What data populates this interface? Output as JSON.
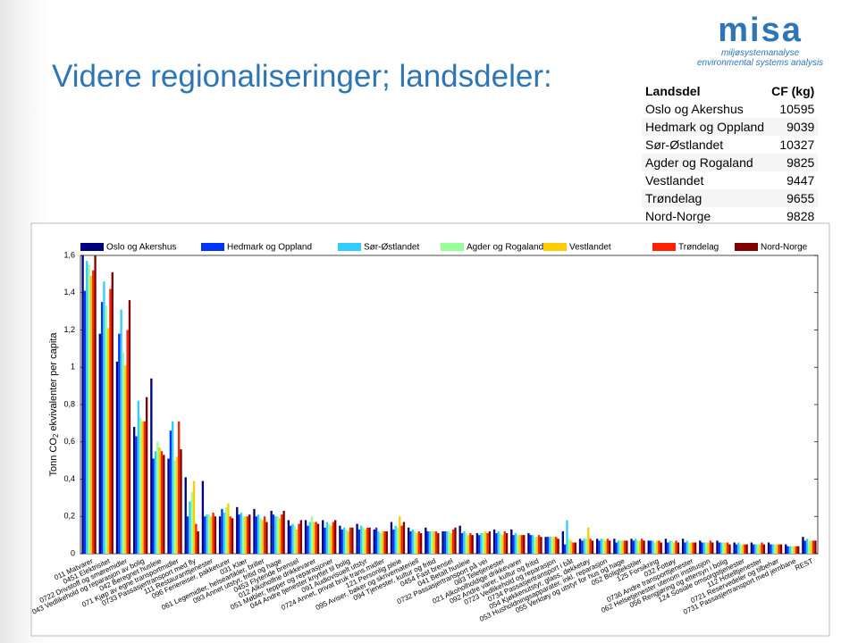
{
  "slide": {
    "title": "Videre regionaliseringer; landsdeler:"
  },
  "logo": {
    "name": "misa",
    "line1": "miljøsystemanalyse",
    "line2": "environmental systems analysis"
  },
  "table": {
    "header": [
      "Landsdel",
      "CF (kg)"
    ],
    "rows": [
      [
        "Oslo og Akershus",
        10595
      ],
      [
        "Hedmark og Oppland",
        9039
      ],
      [
        "Sør-Østlandet",
        10327
      ],
      [
        "Agder og Rogaland",
        9825
      ],
      [
        "Vestlandet",
        9447
      ],
      [
        "Trøndelag",
        9655
      ],
      [
        "Nord-Norge",
        9828
      ]
    ]
  },
  "chart_data": {
    "type": "bar",
    "ylabel": [
      "Tonn CO",
      "2",
      " ekvivalenter per capita"
    ],
    "ylim": [
      0,
      1.6
    ],
    "yticks": [
      0,
      {
        "value": 0.2,
        "label": "0,2"
      },
      {
        "value": 0.4,
        "label": "0,4"
      },
      {
        "value": 0.6,
        "label": "0,6"
      },
      {
        "value": 0.8,
        "label": "0,8"
      },
      1,
      {
        "value": 1.2,
        "label": "1,2"
      },
      {
        "value": 1.4,
        "label": "1,4"
      },
      {
        "value": 1.6,
        "label": "1,6"
      }
    ],
    "legend": "top",
    "categories": [
      "011 Matvarer",
      "0451 Elektrisitet",
      "0722 Drivstoff og smøremidler",
      "043 Vedlikehold og reparasjon av bolig",
      "042 Beregnet husleie",
      "071 Kjøp av egne transportmidler",
      "0733 Passasjertransport med fly",
      "111 Restauranttjenester",
      "096 Feriereiser, pakketurer",
      "031 Klær",
      "061 Legemidler, helseartikler, briller",
      "093 Annet utstyr, fritid og hage",
      "0453 Flytende brensel",
      "012 Alkoholfrie drikkevarer",
      "051 Møbler, tepper og reparasjoner",
      "044 Andre tjenester knyttet til bolig",
      "091 Audiovisuelt utstyr",
      "0724 Annet, privat bruk trans.midler",
      "121 Personlig pleie",
      "095 Aviser, bøker og skrivemateriell",
      "094 Tjenester, kultur og fritid",
      "0454 Fast brensel",
      "041 Betalt husleie",
      "0732 Passasjertransport på vei",
      "083 Teletjenester",
      "021 Alkoholholdige drikkevarer",
      "092 Andre varer, kultur og fritid",
      "0723 Vedlikehold og reparasjon",
      "0734 Passasjertransport i båt",
      "054 Kjøkkenutstyr, glass, dekketøy",
      "053 Husholdningsapparater, inkl. reparasjon",
      "055 Verktøy og utstyr for hus og hage",
      "052 Boligtekstiler",
      "125 Forsikring",
      "032 Fottøy",
      "0736 Andre transporttjenester",
      "062 Helsetjenester utenom institusjon",
      "056 Rengjøring og ettersyn i bolig",
      "124 Sosiale omsorgstjenester",
      "112 Hotelltjenester",
      "0721 Reservedeler og tilbehør",
      "0731 Passasjertransport med jernbane",
      "REST"
    ],
    "series": [
      {
        "name": "Oslo og Akershus",
        "color": "#000080",
        "values": [
          1.6,
          1.18,
          1.03,
          0.68,
          0.94,
          0.51,
          0.41,
          0.39,
          0.2,
          0.25,
          0.24,
          0.23,
          0.18,
          0.18,
          0.18,
          0.15,
          0.16,
          0.13,
          0.17,
          0.14,
          0.14,
          0.12,
          0.15,
          0.11,
          0.13,
          0.13,
          0.11,
          0.09,
          0.12,
          0.08,
          0.08,
          0.08,
          0.08,
          0.07,
          0.08,
          0.08,
          0.07,
          0.07,
          0.06,
          0.06,
          0.06,
          0.05,
          0.09
        ]
      },
      {
        "name": "Hedmark og Oppland",
        "color": "#0033ff",
        "values": [
          1.41,
          1.35,
          1.18,
          0.63,
          0.51,
          0.66,
          0.2,
          0.2,
          0.24,
          0.21,
          0.2,
          0.21,
          0.15,
          0.15,
          0.14,
          0.13,
          0.13,
          0.14,
          0.13,
          0.12,
          0.12,
          0.12,
          0.11,
          0.1,
          0.11,
          0.1,
          0.1,
          0.09,
          0.05,
          0.07,
          0.07,
          0.06,
          0.07,
          0.07,
          0.06,
          0.06,
          0.06,
          0.06,
          0.05,
          0.05,
          0.05,
          0.04,
          0.07
        ]
      },
      {
        "name": "Sør-Østlandet",
        "color": "#33ccff",
        "values": [
          1.57,
          1.46,
          1.31,
          0.82,
          0.55,
          0.71,
          0.28,
          0.21,
          0.22,
          0.22,
          0.21,
          0.2,
          0.16,
          0.17,
          0.17,
          0.14,
          0.15,
          0.12,
          0.15,
          0.13,
          0.12,
          0.12,
          0.12,
          0.11,
          0.12,
          0.11,
          0.1,
          0.09,
          0.18,
          0.08,
          0.08,
          0.07,
          0.08,
          0.07,
          0.07,
          0.07,
          0.06,
          0.06,
          0.06,
          0.05,
          0.05,
          0.04,
          0.08
        ]
      },
      {
        "name": "Agder og Rogaland",
        "color": "#99ff99",
        "values": [
          1.55,
          1.33,
          1.08,
          0.73,
          0.6,
          0.5,
          0.33,
          0.21,
          0.25,
          0.2,
          0.19,
          0.2,
          0.15,
          0.2,
          0.16,
          0.13,
          0.14,
          0.11,
          0.14,
          0.12,
          0.12,
          0.12,
          0.11,
          0.11,
          0.11,
          0.1,
          0.09,
          0.09,
          0.08,
          0.08,
          0.08,
          0.07,
          0.07,
          0.06,
          0.07,
          0.06,
          0.06,
          0.06,
          0.05,
          0.05,
          0.05,
          0.04,
          0.07
        ]
      },
      {
        "name": "Vestlandet",
        "color": "#ffcc00",
        "values": [
          1.49,
          1.21,
          1.01,
          0.71,
          0.57,
          0.52,
          0.39,
          0.2,
          0.27,
          0.2,
          0.18,
          0.19,
          0.13,
          0.17,
          0.15,
          0.12,
          0.13,
          0.12,
          0.2,
          0.11,
          0.12,
          0.11,
          0.1,
          0.12,
          0.1,
          0.1,
          0.09,
          0.09,
          0.07,
          0.14,
          0.07,
          0.07,
          0.07,
          0.07,
          0.06,
          0.06,
          0.06,
          0.06,
          0.05,
          0.05,
          0.05,
          0.04,
          0.07
        ]
      },
      {
        "name": "Trøndelag",
        "color": "#ff2200",
        "values": [
          1.52,
          1.42,
          1.2,
          0.71,
          0.55,
          0.71,
          0.16,
          0.22,
          0.2,
          0.2,
          0.2,
          0.21,
          0.16,
          0.17,
          0.17,
          0.14,
          0.14,
          0.12,
          0.15,
          0.12,
          0.12,
          0.13,
          0.11,
          0.11,
          0.12,
          0.1,
          0.1,
          0.09,
          0.06,
          0.08,
          0.08,
          0.07,
          0.08,
          0.07,
          0.07,
          0.06,
          0.07,
          0.06,
          0.05,
          0.06,
          0.05,
          0.04,
          0.07
        ]
      },
      {
        "name": "Nord-Norge",
        "color": "#800000",
        "values": [
          1.6,
          1.51,
          1.36,
          0.84,
          0.53,
          0.56,
          0.12,
          0.2,
          0.19,
          0.21,
          0.17,
          0.23,
          0.18,
          0.16,
          0.18,
          0.14,
          0.14,
          0.12,
          0.17,
          0.11,
          0.11,
          0.14,
          0.1,
          0.12,
          0.11,
          0.1,
          0.09,
          0.08,
          0.06,
          0.07,
          0.07,
          0.07,
          0.07,
          0.06,
          0.06,
          0.06,
          0.06,
          0.05,
          0.05,
          0.05,
          0.05,
          0.04,
          0.07
        ]
      }
    ]
  }
}
